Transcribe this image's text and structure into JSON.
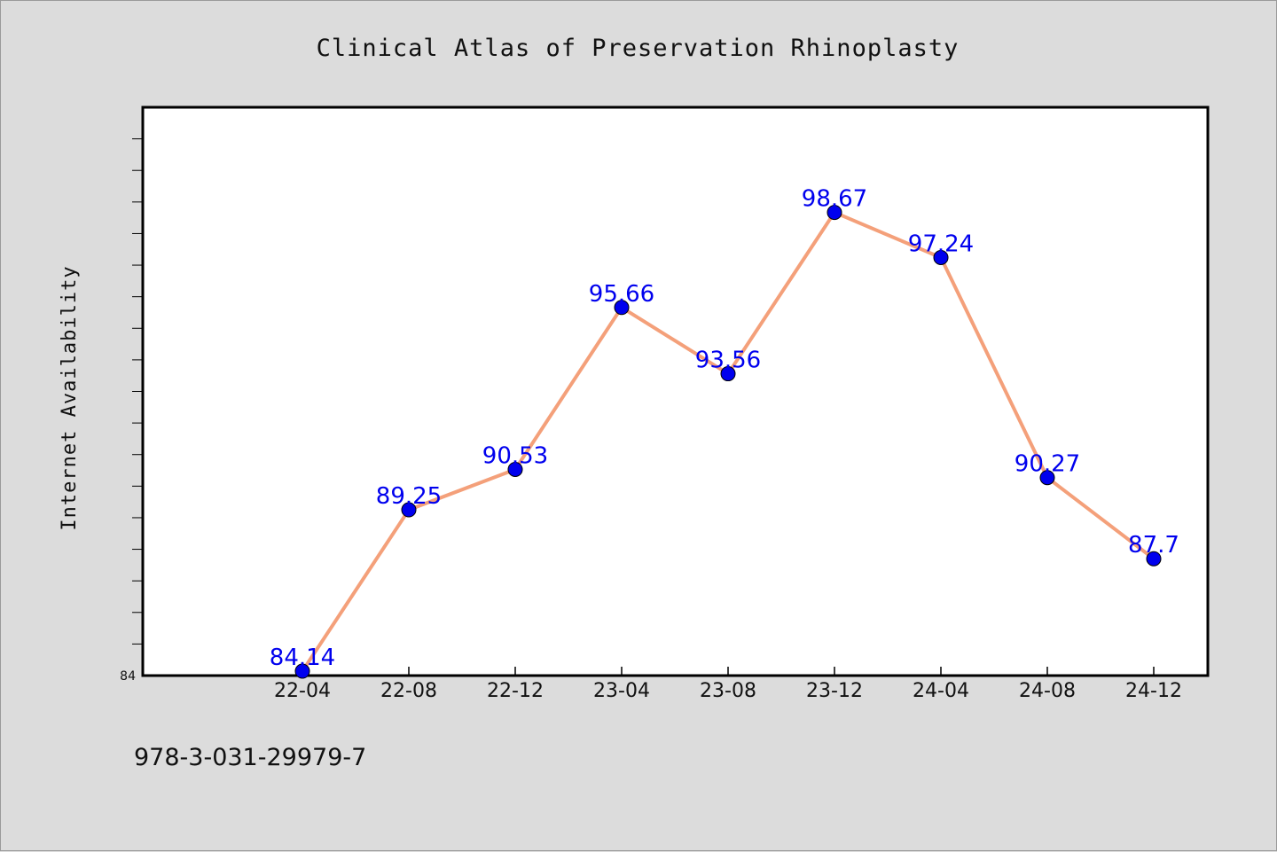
{
  "chart_data": {
    "type": "line",
    "title": "Clinical Atlas of Preservation Rhinoplasty",
    "xlabel": "",
    "ylabel": "Internet Availability",
    "categories": [
      "22-04",
      "22-08",
      "22-12",
      "23-04",
      "23-08",
      "23-12",
      "24-04",
      "24-08",
      "24-12"
    ],
    "series": [
      {
        "values": [
          84.14,
          89.25,
          90.53,
          95.66,
          93.56,
          98.67,
          97.24,
          90.27,
          87.7
        ],
        "labels": [
          "84.14",
          "89.25",
          "90.53",
          "95.66",
          "93.56",
          "98.67",
          "97.24",
          "90.27",
          "87.7"
        ]
      }
    ],
    "ylim": [
      84,
      102
    ],
    "ytick_labels": [
      "84"
    ],
    "minor_tick_step": 1,
    "grid": false,
    "legend": "none",
    "line_color": "#f4a07a",
    "marker_color": "#0000ee",
    "label_color": "#0000ee",
    "plot_background": "#ffffff",
    "page_background": "#dcdcdc"
  },
  "footer": {
    "isbn": "978-3-031-29979-7"
  }
}
